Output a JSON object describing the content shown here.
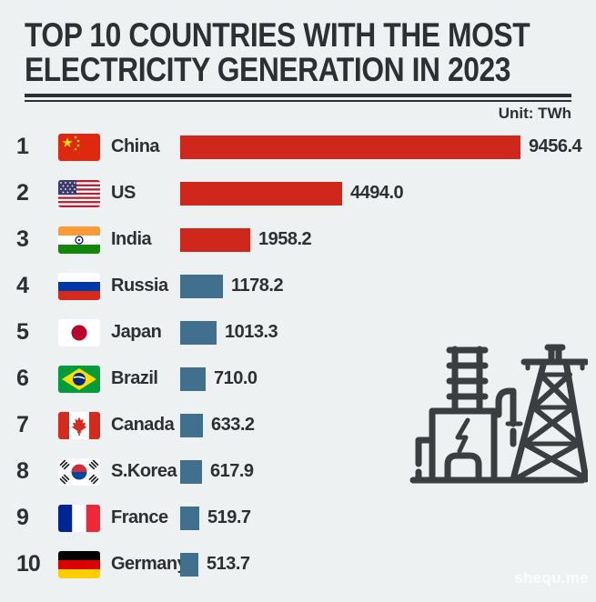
{
  "header": {
    "title_line1": "TOP 10 COUNTRIES WITH THE MOST",
    "title_line2": "ELECTRICITY GENERATION IN 2023",
    "unit_label": "Unit: TWh"
  },
  "watermark": "shequ.me",
  "colors": {
    "background": "#edf1f2",
    "text": "#2d3033",
    "bar_top3": "#d0271d",
    "bar_rest": "#40708e",
    "icon_stroke": "#3a3e40"
  },
  "chart_data": {
    "type": "bar",
    "orientation": "horizontal",
    "title": "TOP 10 COUNTRIES WITH THE MOST ELECTRICITY GENERATION IN 2023",
    "unit": "TWh",
    "max_value": 9456.4,
    "categories": [
      "China",
      "US",
      "India",
      "Russia",
      "Japan",
      "Brazil",
      "Canada",
      "S.Korea",
      "France",
      "Germany"
    ],
    "values": [
      9456.4,
      4494.0,
      1958.2,
      1178.2,
      1013.3,
      710.0,
      633.2,
      617.9,
      519.7,
      513.7
    ],
    "rows": [
      {
        "rank": "1",
        "country": "China",
        "flag": "cn",
        "value": 9456.4,
        "value_label": "9456.4",
        "bar_color": "#d0271d"
      },
      {
        "rank": "2",
        "country": "US",
        "flag": "us",
        "value": 4494.0,
        "value_label": "4494.0",
        "bar_color": "#d0271d"
      },
      {
        "rank": "3",
        "country": "India",
        "flag": "in",
        "value": 1958.2,
        "value_label": "1958.2",
        "bar_color": "#d0271d"
      },
      {
        "rank": "4",
        "country": "Russia",
        "flag": "ru",
        "value": 1178.2,
        "value_label": "1178.2",
        "bar_color": "#40708e"
      },
      {
        "rank": "5",
        "country": "Japan",
        "flag": "jp",
        "value": 1013.3,
        "value_label": "1013.3",
        "bar_color": "#40708e"
      },
      {
        "rank": "6",
        "country": "Brazil",
        "flag": "br",
        "value": 710.0,
        "value_label": "710.0",
        "bar_color": "#40708e"
      },
      {
        "rank": "7",
        "country": "Canada",
        "flag": "ca",
        "value": 633.2,
        "value_label": "633.2",
        "bar_color": "#40708e"
      },
      {
        "rank": "8",
        "country": "S.Korea",
        "flag": "kr",
        "value": 617.9,
        "value_label": "617.9",
        "bar_color": "#40708e"
      },
      {
        "rank": "9",
        "country": "France",
        "flag": "fr",
        "value": 519.7,
        "value_label": "519.7",
        "bar_color": "#40708e"
      },
      {
        "rank": "10",
        "country": "Germany",
        "flag": "de",
        "value": 513.7,
        "value_label": "513.7",
        "bar_color": "#40708e"
      }
    ]
  }
}
